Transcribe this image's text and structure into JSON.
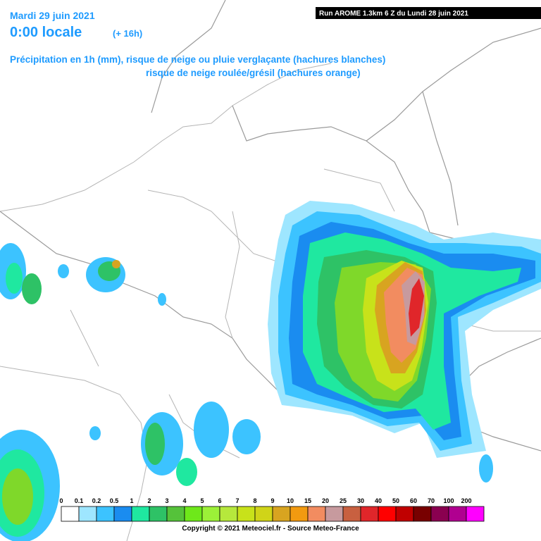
{
  "header": {
    "date": "Mardi 29 juin 2021",
    "time": "0:00 locale",
    "lead": "(+ 16h)",
    "run": "Run AROME 1.3km 6 Z du Lundi 28 juin 2021",
    "subtitle_1": "Précipitation en 1h (mm), risque de neige ou pluie verglaçante (hachures blanches)",
    "subtitle_2": "risque de neige roulée/grésil (hachures orange)"
  },
  "legend": {
    "items": [
      {
        "label": 0,
        "color": "#ffffff"
      },
      {
        "label": 0.1,
        "color": "#9ee6ff"
      },
      {
        "label": 0.2,
        "color": "#3cc3ff"
      },
      {
        "label": 0.5,
        "color": "#1a8cf0"
      },
      {
        "label": 1,
        "color": "#1fe8a0"
      },
      {
        "label": 2,
        "color": "#2ec266"
      },
      {
        "label": 3,
        "color": "#55c23a"
      },
      {
        "label": 4,
        "color": "#6ee81a"
      },
      {
        "label": 5,
        "color": "#9cf038"
      },
      {
        "label": 6,
        "color": "#b6e83c"
      },
      {
        "label": 7,
        "color": "#c8e21a"
      },
      {
        "label": 8,
        "color": "#d0d418"
      },
      {
        "label": 9,
        "color": "#d8a420"
      },
      {
        "label": 10,
        "color": "#f29a10"
      },
      {
        "label": 15,
        "color": "#f28c60"
      },
      {
        "label": 20,
        "color": "#c79a9e"
      },
      {
        "label": 25,
        "color": "#c86040"
      },
      {
        "label": 30,
        "color": "#e0262a"
      },
      {
        "label": 40,
        "color": "#ff0000"
      },
      {
        "label": 50,
        "color": "#c00000"
      },
      {
        "label": 60,
        "color": "#780000"
      },
      {
        "label": 70,
        "color": "#8a0050"
      },
      {
        "label": 100,
        "color": "#b00090"
      },
      {
        "label": 200,
        "color": "#ff00ff"
      }
    ]
  },
  "footer": {
    "copyright": "Copyright © 2021 Meteociel.fr - Source Meteo-France"
  }
}
